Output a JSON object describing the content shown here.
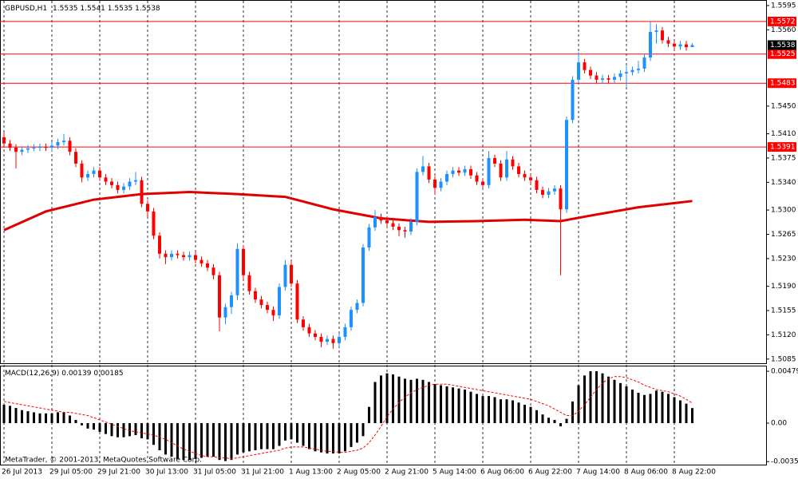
{
  "chart_data": [
    {
      "type": "candlestick",
      "symbol": "GBPUSD,H1",
      "up_color": "#1e90ff",
      "down_color": "#ff0000",
      "ma_color": "#e00000",
      "grid": true,
      "ylim": [
        1.5079,
        1.5603
      ],
      "yticks": [
        1.5595,
        {
          "value": 1.556,
          "label": "1.5560"
        },
        {
          "value": 1.545,
          "label": "1.5450"
        },
        {
          "value": 1.541,
          "label": "1.5410"
        },
        1.5375,
        {
          "value": 1.534,
          "label": "1.5340"
        },
        {
          "value": 1.53,
          "label": "1.5300"
        },
        1.5265,
        {
          "value": 1.523,
          "label": "1.5230"
        },
        {
          "value": 1.519,
          "label": "1.5190"
        },
        1.5155,
        {
          "value": 1.512,
          "label": "1.5120"
        },
        1.5085
      ],
      "xticks": [
        {
          "value": 0,
          "label": "26 Jul 2013"
        },
        {
          "value": 8,
          "label": "29 Jul 05:00"
        },
        {
          "value": 16,
          "label": "29 Jul 21:00"
        },
        {
          "value": 24,
          "label": "30 Jul 13:00"
        },
        {
          "value": 32,
          "label": "31 Jul 05:00"
        },
        {
          "value": 40,
          "label": "31 Jul 21:00"
        },
        {
          "value": 48,
          "label": "1 Aug 13:00"
        },
        {
          "value": 56,
          "label": "2 Aug 05:00"
        },
        {
          "value": 64,
          "label": "2 Aug 21:00"
        },
        {
          "value": 72,
          "label": "5 Aug 14:00"
        },
        {
          "value": 80,
          "label": "6 Aug 06:00"
        },
        {
          "value": 88,
          "label": "6 Aug 22:00"
        },
        {
          "value": 96,
          "label": "7 Aug 14:00"
        },
        {
          "value": 104,
          "label": "8 Aug 06:00"
        },
        {
          "value": 112,
          "label": "8 Aug 22:00"
        }
      ],
      "levels": [
        {
          "value": 1.5572,
          "color": "#ff0000"
        },
        {
          "value": 1.5525,
          "color": "#ff0000"
        },
        {
          "value": 1.5483,
          "color": "#ff0000"
        },
        {
          "value": 1.5391,
          "color": "#ff0000"
        }
      ],
      "bid": 1.5538,
      "ohlc": [
        [
          1.5405,
          1.5412,
          1.539,
          1.5396
        ],
        [
          1.5396,
          1.5401,
          1.5385,
          1.539
        ],
        [
          1.539,
          1.5395,
          1.536,
          1.5384
        ],
        [
          1.5384,
          1.5392,
          1.5379,
          1.5387
        ],
        [
          1.5387,
          1.5394,
          1.5382,
          1.5389
        ],
        [
          1.5389,
          1.5395,
          1.5385,
          1.539
        ],
        [
          1.539,
          1.5396,
          1.5385,
          1.5391
        ],
        [
          1.5391,
          1.5396,
          1.5385,
          1.539
        ],
        [
          1.539,
          1.5398,
          1.5385,
          1.5393
        ],
        [
          1.5393,
          1.5403,
          1.5388,
          1.5398
        ],
        [
          1.5398,
          1.541,
          1.5393,
          1.54
        ],
        [
          1.54,
          1.5405,
          1.5379,
          1.5384
        ],
        [
          1.5384,
          1.5389,
          1.5362,
          1.5367
        ],
        [
          1.5367,
          1.5372,
          1.534,
          1.5347
        ],
        [
          1.5347,
          1.5357,
          1.5342,
          1.5352
        ],
        [
          1.5352,
          1.5362,
          1.5347,
          1.5357
        ],
        [
          1.5357,
          1.5362,
          1.5342,
          1.5347
        ],
        [
          1.5347,
          1.5352,
          1.5336,
          1.5341
        ],
        [
          1.5341,
          1.5346,
          1.5331,
          1.5336
        ],
        [
          1.5336,
          1.5341,
          1.5324,
          1.5329
        ],
        [
          1.5329,
          1.5339,
          1.5324,
          1.5334
        ],
        [
          1.5334,
          1.5346,
          1.5329,
          1.5341
        ],
        [
          1.5341,
          1.5355,
          1.5336,
          1.5343
        ],
        [
          1.5343,
          1.5348,
          1.5304,
          1.5309
        ],
        [
          1.5309,
          1.5314,
          1.529,
          1.5298
        ],
        [
          1.5298,
          1.5303,
          1.5258,
          1.5263
        ],
        [
          1.5263,
          1.5268,
          1.523,
          1.5237
        ],
        [
          1.5237,
          1.5242,
          1.5222,
          1.5232
        ],
        [
          1.5232,
          1.5242,
          1.5227,
          1.5237
        ],
        [
          1.5237,
          1.5242,
          1.523,
          1.5235
        ],
        [
          1.5235,
          1.524,
          1.5227,
          1.5232
        ],
        [
          1.5232,
          1.524,
          1.5227,
          1.5235
        ],
        [
          1.5235,
          1.524,
          1.5223,
          1.5228
        ],
        [
          1.5228,
          1.5233,
          1.5218,
          1.5223
        ],
        [
          1.5223,
          1.5228,
          1.5212,
          1.5217
        ],
        [
          1.5217,
          1.5222,
          1.52,
          1.5206
        ],
        [
          1.5206,
          1.5211,
          1.5125,
          1.5145
        ],
        [
          1.5145,
          1.5165,
          1.5135,
          1.516
        ],
        [
          1.516,
          1.5182,
          1.515,
          1.5177
        ],
        [
          1.5177,
          1.5252,
          1.517,
          1.5244
        ],
        [
          1.5244,
          1.5249,
          1.52,
          1.5206
        ],
        [
          1.5206,
          1.5211,
          1.5178,
          1.5183
        ],
        [
          1.5183,
          1.5188,
          1.5166,
          1.5171
        ],
        [
          1.5171,
          1.5176,
          1.5158,
          1.5163
        ],
        [
          1.5163,
          1.5168,
          1.5151,
          1.5156
        ],
        [
          1.5156,
          1.5161,
          1.514,
          1.5148
        ],
        [
          1.5148,
          1.5194,
          1.5143,
          1.5189
        ],
        [
          1.5189,
          1.5228,
          1.5184,
          1.5221
        ],
        [
          1.5221,
          1.5226,
          1.5189,
          1.5194
        ],
        [
          1.5194,
          1.5199,
          1.5137,
          1.5142
        ],
        [
          1.5142,
          1.5147,
          1.5126,
          1.5131
        ],
        [
          1.5131,
          1.5136,
          1.5117,
          1.5122
        ],
        [
          1.5122,
          1.5127,
          1.5112,
          1.5117
        ],
        [
          1.5117,
          1.5122,
          1.5102,
          1.511
        ],
        [
          1.511,
          1.5119,
          1.5105,
          1.5114
        ],
        [
          1.5114,
          1.5119,
          1.51,
          1.5108
        ],
        [
          1.5108,
          1.5122,
          1.5103,
          1.5117
        ],
        [
          1.5117,
          1.5136,
          1.5112,
          1.5131
        ],
        [
          1.5131,
          1.5161,
          1.5126,
          1.5156
        ],
        [
          1.5156,
          1.5171,
          1.5151,
          1.5166
        ],
        [
          1.5166,
          1.5251,
          1.5161,
          1.5246
        ],
        [
          1.5246,
          1.528,
          1.5241,
          1.5275
        ],
        [
          1.5275,
          1.53,
          1.527,
          1.529
        ],
        [
          1.529,
          1.5295,
          1.528,
          1.5285
        ],
        [
          1.5285,
          1.529,
          1.5276,
          1.5281
        ],
        [
          1.5281,
          1.5286,
          1.5271,
          1.5276
        ],
        [
          1.5276,
          1.5281,
          1.5262,
          1.5271
        ],
        [
          1.5271,
          1.5276,
          1.526,
          1.5269
        ],
        [
          1.5269,
          1.5288,
          1.5264,
          1.5283
        ],
        [
          1.5283,
          1.536,
          1.5278,
          1.5355
        ],
        [
          1.5355,
          1.5378,
          1.535,
          1.5363
        ],
        [
          1.5363,
          1.5368,
          1.5339,
          1.5344
        ],
        [
          1.5344,
          1.5349,
          1.5322,
          1.5332
        ],
        [
          1.5332,
          1.5346,
          1.5327,
          1.5341
        ],
        [
          1.5341,
          1.5357,
          1.5336,
          1.5352
        ],
        [
          1.5352,
          1.5362,
          1.5347,
          1.5357
        ],
        [
          1.5357,
          1.5362,
          1.5349,
          1.5354
        ],
        [
          1.5354,
          1.5364,
          1.5349,
          1.5359
        ],
        [
          1.5359,
          1.5364,
          1.5345,
          1.535
        ],
        [
          1.535,
          1.5355,
          1.5336,
          1.5341
        ],
        [
          1.5341,
          1.5346,
          1.5331,
          1.5336
        ],
        [
          1.5336,
          1.5385,
          1.5331,
          1.5375
        ],
        [
          1.5375,
          1.538,
          1.5362,
          1.5367
        ],
        [
          1.5367,
          1.5372,
          1.5342,
          1.5347
        ],
        [
          1.5347,
          1.5385,
          1.5342,
          1.5373
        ],
        [
          1.5373,
          1.5378,
          1.5358,
          1.5363
        ],
        [
          1.5363,
          1.5368,
          1.5347,
          1.5352
        ],
        [
          1.5352,
          1.5357,
          1.5342,
          1.5347
        ],
        [
          1.5347,
          1.5352,
          1.5338,
          1.5343
        ],
        [
          1.5343,
          1.5348,
          1.5324,
          1.5329
        ],
        [
          1.5329,
          1.5334,
          1.5317,
          1.5322
        ],
        [
          1.5322,
          1.5332,
          1.5317,
          1.5327
        ],
        [
          1.5327,
          1.5336,
          1.5322,
          1.5331
        ],
        [
          1.5331,
          1.5336,
          1.5206,
          1.5301
        ],
        [
          1.5301,
          1.5435,
          1.5296,
          1.543
        ],
        [
          1.543,
          1.5493,
          1.5425,
          1.5488
        ],
        [
          1.5488,
          1.5528,
          1.5483,
          1.5513
        ],
        [
          1.5513,
          1.5518,
          1.5497,
          1.5502
        ],
        [
          1.5502,
          1.5507,
          1.5489,
          1.5494
        ],
        [
          1.5494,
          1.5499,
          1.5483,
          1.5488
        ],
        [
          1.5488,
          1.5495,
          1.5483,
          1.549
        ],
        [
          1.549,
          1.5495,
          1.5483,
          1.5488
        ],
        [
          1.5488,
          1.5497,
          1.5483,
          1.5492
        ],
        [
          1.5492,
          1.5502,
          1.5487,
          1.5497
        ],
        [
          1.5497,
          1.5508,
          1.5478,
          1.5499
        ],
        [
          1.5499,
          1.5507,
          1.5494,
          1.5502
        ],
        [
          1.5502,
          1.5515,
          1.5497,
          1.5504
        ],
        [
          1.5504,
          1.5525,
          1.5499,
          1.552
        ],
        [
          1.552,
          1.5572,
          1.5515,
          1.5557
        ],
        [
          1.5557,
          1.5568,
          1.554,
          1.5559
        ],
        [
          1.5559,
          1.5564,
          1.554,
          1.5545
        ],
        [
          1.5545,
          1.555,
          1.5535,
          1.554
        ],
        [
          1.554,
          1.5545,
          1.5531,
          1.5536
        ],
        [
          1.5536,
          1.5544,
          1.5531,
          1.5539
        ],
        [
          1.5539,
          1.5544,
          1.553,
          1.5535
        ],
        [
          1.5535,
          1.5541,
          1.5535,
          1.5538
        ]
      ],
      "ma": {
        "x": [
          0,
          7,
          15,
          23,
          31,
          39,
          47,
          55,
          63,
          71,
          79,
          87,
          93,
          98,
          106,
          115
        ],
        "values": [
          1.5271,
          1.5298,
          1.5315,
          1.5323,
          1.5326,
          1.5323,
          1.5319,
          1.5301,
          1.5288,
          1.5283,
          1.5284,
          1.5286,
          1.5284,
          1.5292,
          1.5304,
          1.5313
        ]
      },
      "copyright": "MetaTrader, © 2001-2013, MetaQuotes Software Corp."
    },
    {
      "type": "macd",
      "name": "MACD(12,26,9)",
      "hist_color": "#000000",
      "signal_color": "#ff0000",
      "ylim": [
        -0.00383,
        0.00531
      ],
      "yticks": [
        0.00479,
        {
          "value": 0,
          "label": "0.00"
        },
        -0.00355
      ],
      "values": [
        0.0017,
        0.0016,
        0.0014,
        0.0012,
        0.0011,
        0.001,
        0.0009,
        0.0009,
        0.0009,
        0.001,
        0.001,
        0.0007,
        0.0003,
        -0.0002,
        -0.0005,
        -0.0006,
        -0.0008,
        -0.001,
        -0.0012,
        -0.0013,
        -0.0013,
        -0.0012,
        -0.0011,
        -0.0014,
        -0.0015,
        -0.002,
        -0.0025,
        -0.0029,
        -0.0031,
        -0.0033,
        -0.0034,
        -0.0034,
        -0.0033,
        -0.0032,
        -0.0031,
        -0.0031,
        -0.0034,
        -0.0035,
        -0.0034,
        -0.0029,
        -0.0027,
        -0.0026,
        -0.0025,
        -0.0024,
        -0.0024,
        -0.0024,
        -0.0021,
        -0.0016,
        -0.0015,
        -0.0018,
        -0.0021,
        -0.0024,
        -0.0026,
        -0.0027,
        -0.0028,
        -0.0028,
        -0.0028,
        -0.0026,
        -0.0022,
        -0.0018,
        -0.0012,
        0.0015,
        0.0038,
        0.0044,
        0.0046,
        0.0045,
        0.0043,
        0.0041,
        0.004,
        0.0041,
        0.004,
        0.0038,
        0.0036,
        0.0035,
        0.0034,
        0.0033,
        0.0032,
        0.0031,
        0.0029,
        0.0027,
        0.0025,
        0.0025,
        0.0024,
        0.0022,
        0.0022,
        0.0021,
        0.0019,
        0.0017,
        0.0015,
        0.0012,
        0.0008,
        0.0005,
        0.0003,
        -0.0003,
        0.0004,
        0.002,
        0.0035,
        0.0044,
        0.0048,
        0.0048,
        0.0046,
        0.0043,
        0.004,
        0.0037,
        0.0034,
        0.0031,
        0.0028,
        0.0026,
        0.0027,
        0.003,
        0.0029,
        0.0027,
        0.0024,
        0.0021,
        0.0018,
        0.00139
      ],
      "signal": [
        0.002,
        0.0019,
        0.0018,
        0.0017,
        0.0016,
        0.0015,
        0.0014,
        0.0013,
        0.0012,
        0.0011,
        0.001,
        0.001,
        0.0009,
        0.0008,
        0.0007,
        0.0005,
        0.0003,
        0.0001,
        -0.0001,
        -0.0003,
        -0.0005,
        -0.0007,
        -0.0008,
        -0.0009,
        -0.001,
        -0.0011,
        -0.0013,
        -0.0015,
        -0.0018,
        -0.0021,
        -0.0024,
        -0.0026,
        -0.0028,
        -0.003,
        -0.0031,
        -0.0031,
        -0.0032,
        -0.0032,
        -0.0033,
        -0.0032,
        -0.0031,
        -0.003,
        -0.0029,
        -0.0028,
        -0.0027,
        -0.0026,
        -0.0025,
        -0.0023,
        -0.0022,
        -0.0022,
        -0.0022,
        -0.0023,
        -0.0024,
        -0.0025,
        -0.0026,
        -0.0026,
        -0.0027,
        -0.0027,
        -0.0026,
        -0.0025,
        -0.0023,
        -0.0018,
        -0.0011,
        -0.0003,
        0.0006,
        0.0013,
        0.0019,
        0.0024,
        0.0028,
        0.0031,
        0.0033,
        0.0035,
        0.0036,
        0.0036,
        0.0036,
        0.0035,
        0.0034,
        0.0033,
        0.0032,
        0.0031,
        0.003,
        0.0029,
        0.0028,
        0.0027,
        0.0026,
        0.0025,
        0.0024,
        0.0023,
        0.0022,
        0.002,
        0.0018,
        0.0016,
        0.0013,
        0.001,
        0.0007,
        0.0007,
        0.0011,
        0.0017,
        0.0024,
        0.0031,
        0.0037,
        0.0041,
        0.0043,
        0.0043,
        0.0042,
        0.004,
        0.0038,
        0.0035,
        0.0033,
        0.0031,
        0.003,
        0.0029,
        0.0027,
        0.0025,
        0.0022,
        0.00185
      ]
    }
  ]
}
